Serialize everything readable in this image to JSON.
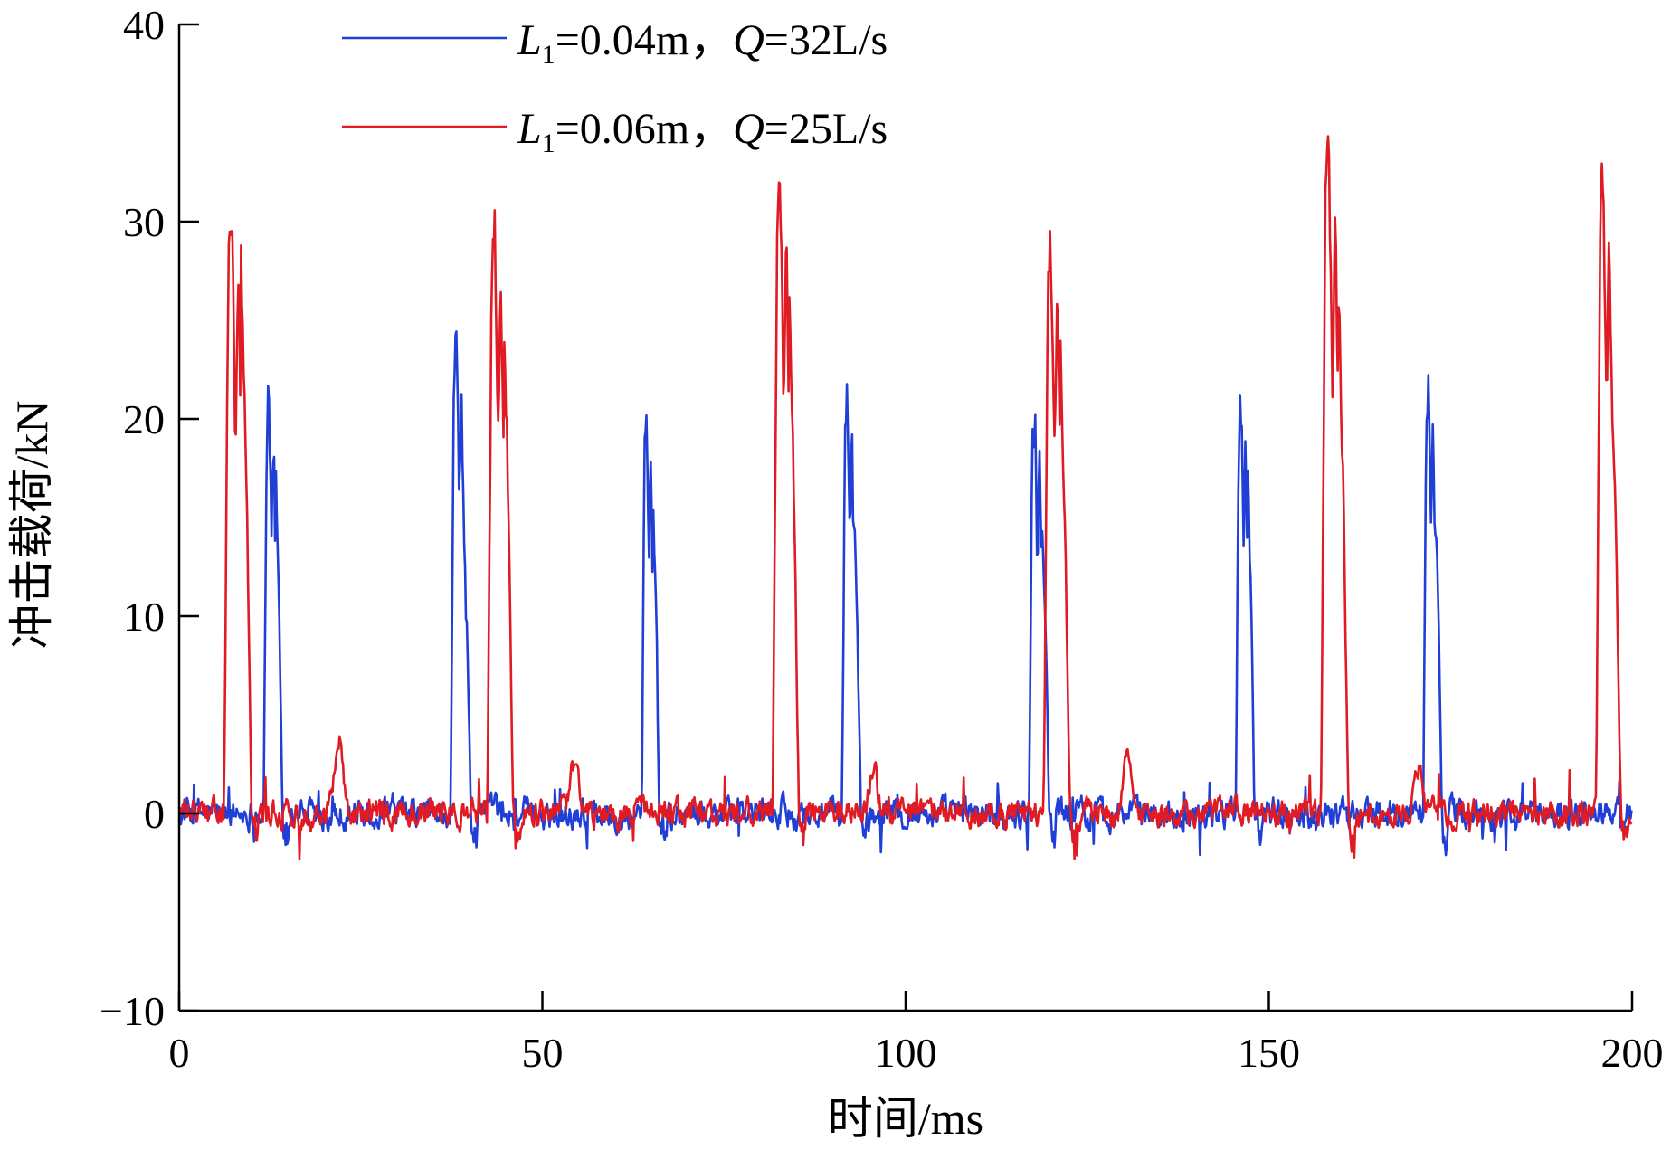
{
  "chart_data": {
    "type": "line",
    "title": "",
    "xlabel": "时间/ms",
    "ylabel": "冲击载荷/kN",
    "xlim": [
      0,
      200
    ],
    "ylim": [
      -10,
      40
    ],
    "x_ticks": [
      0,
      50,
      100,
      150,
      200
    ],
    "y_ticks": [
      -10,
      0,
      10,
      20,
      30,
      40
    ],
    "x_tick_labels": [
      "0",
      "50",
      "100",
      "150",
      "200"
    ],
    "y_tick_labels": [
      "−10",
      "0",
      "10",
      "20",
      "30",
      "40"
    ],
    "legend_position": "top-center",
    "series": [
      {
        "name": "L1=0.04m，Q=32L/s",
        "legend": {
          "var1": "L",
          "sub1": "1",
          "mid": "=0.04m，",
          "var2": "Q",
          "tail": "=32L/s"
        },
        "color": "#1f3fd6",
        "peaks": [
          {
            "t": 12.2,
            "peak": 20.8,
            "width": 2.6,
            "shoulder": 18.0
          },
          {
            "t": 38.0,
            "peak": 24.0,
            "width": 2.8,
            "shoulder": 14.5
          },
          {
            "t": 64.2,
            "peak": 19.5,
            "width": 2.4,
            "shoulder": 17.0
          },
          {
            "t": 91.8,
            "peak": 21.0,
            "width": 2.6,
            "shoulder": 16.0
          },
          {
            "t": 117.6,
            "peak": 20.3,
            "width": 2.8,
            "shoulder": 15.5
          },
          {
            "t": 146.0,
            "peak": 20.8,
            "width": 2.6,
            "shoulder": 17.5
          },
          {
            "t": 171.8,
            "peak": 21.0,
            "width": 2.6,
            "shoulder": 16.5
          }
        ],
        "bumps": []
      },
      {
        "name": "L1=0.06m，Q=25L/s",
        "legend": {
          "var1": "L",
          "sub1": "1",
          "mid": "=0.06m，",
          "var2": "Q",
          "tail": "=25L/s"
        },
        "color": "#e01b24",
        "peaks": [
          {
            "t": 7.0,
            "peak": 30.5,
            "width": 3.8,
            "shoulder": 28.0
          },
          {
            "t": 43.2,
            "peak": 29.0,
            "width": 3.6,
            "shoulder": 26.0
          },
          {
            "t": 82.5,
            "peak": 31.8,
            "width": 3.6,
            "shoulder": 27.0
          },
          {
            "t": 119.8,
            "peak": 28.7,
            "width": 3.6,
            "shoulder": 24.0
          },
          {
            "t": 158.0,
            "peak": 33.4,
            "width": 3.8,
            "shoulder": 27.0
          },
          {
            "t": 195.8,
            "peak": 32.3,
            "width": 3.4,
            "shoulder": 22.0
          }
        ],
        "bumps": [
          {
            "t": 22.0,
            "peak": 3.8
          },
          {
            "t": 54.5,
            "peak": 2.6
          },
          {
            "t": 95.5,
            "peak": 2.3
          },
          {
            "t": 130.5,
            "peak": 2.6
          },
          {
            "t": 170.5,
            "peak": 2.2
          }
        ]
      }
    ]
  }
}
